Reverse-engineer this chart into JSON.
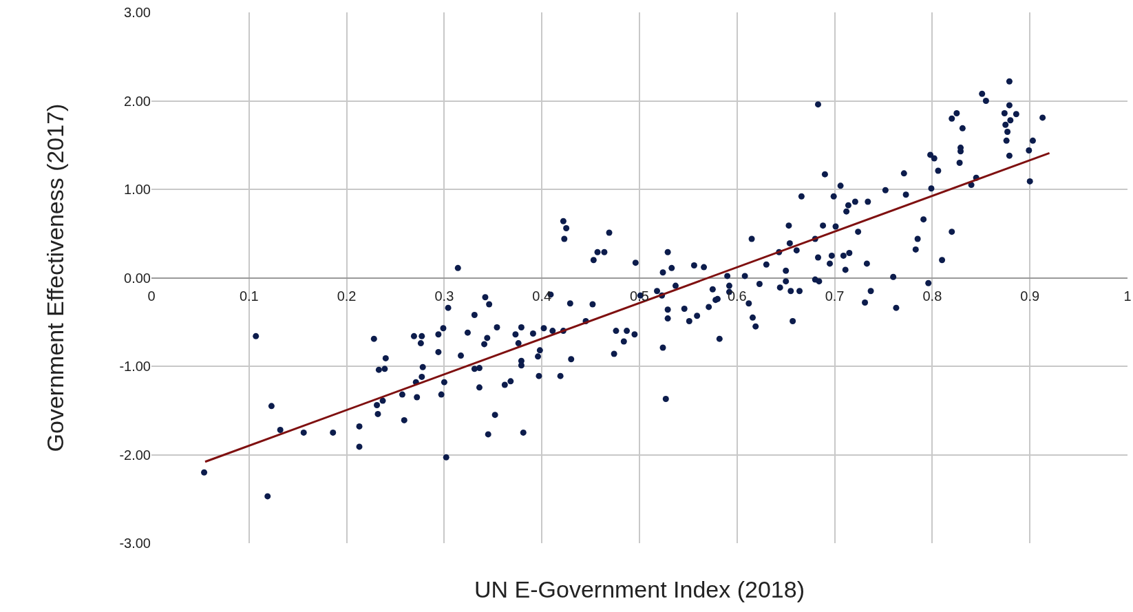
{
  "chart_data": {
    "type": "scatter",
    "xlabel": "UN E-Government Index (2018)",
    "ylabel": "Government Effectiveness (2017)",
    "xlim": [
      0,
      1
    ],
    "xticks": [
      0,
      0.1,
      0.2,
      0.3,
      0.4,
      0.5,
      0.6,
      0.7,
      0.8,
      0.9,
      1
    ],
    "ylim": [
      -3,
      3
    ],
    "yticks": [
      {
        "value": -3,
        "label": "-3.00"
      },
      {
        "value": -2,
        "label": "-2.00"
      },
      {
        "value": -1,
        "label": "-1.00"
      },
      {
        "value": 0,
        "label": "0.00"
      },
      {
        "value": 1,
        "label": "1.00"
      },
      {
        "value": 2,
        "label": "2.00"
      },
      {
        "value": 3,
        "label": "3.00"
      }
    ],
    "grid": true,
    "marker": "circle",
    "series": [
      {
        "color": "#0c1c4c",
        "x": [
          0.054,
          0.107,
          0.119,
          0.123,
          0.132,
          0.156,
          0.186,
          0.213,
          0.213,
          0.228,
          0.231,
          0.232,
          0.233,
          0.239,
          0.237,
          0.24,
          0.257,
          0.259,
          0.269,
          0.271,
          0.272,
          0.276,
          0.277,
          0.278,
          0.277,
          0.294,
          0.294,
          0.297,
          0.299,
          0.3,
          0.302,
          0.304,
          0.314,
          0.317,
          0.324,
          0.331,
          0.331,
          0.336,
          0.336,
          0.342,
          0.344,
          0.341,
          0.346,
          0.345,
          0.352,
          0.354,
          0.362,
          0.368,
          0.373,
          0.376,
          0.379,
          0.379,
          0.379,
          0.381,
          0.391,
          0.396,
          0.397,
          0.398,
          0.402,
          0.409,
          0.411,
          0.419,
          0.422,
          0.425,
          0.423,
          0.422,
          0.429,
          0.43,
          0.445,
          0.452,
          0.453,
          0.457,
          0.464,
          0.469,
          0.474,
          0.476,
          0.484,
          0.487,
          0.495,
          0.496,
          0.501,
          0.518,
          0.523,
          0.524,
          0.529,
          0.529,
          0.529,
          0.524,
          0.527,
          0.533,
          0.537,
          0.546,
          0.551,
          0.556,
          0.559,
          0.566,
          0.571,
          0.575,
          0.578,
          0.58,
          0.582,
          0.59,
          0.592,
          0.592,
          0.608,
          0.612,
          0.615,
          0.616,
          0.619,
          0.623,
          0.63,
          0.643,
          0.644,
          0.65,
          0.65,
          0.653,
          0.654,
          0.655,
          0.657,
          0.661,
          0.664,
          0.666,
          0.68,
          0.68,
          0.683,
          0.683,
          0.684,
          0.688,
          0.69,
          0.695,
          0.697,
          0.699,
          0.701,
          0.706,
          0.709,
          0.711,
          0.712,
          0.714,
          0.715,
          0.721,
          0.724,
          0.731,
          0.733,
          0.734,
          0.737,
          0.752,
          0.76,
          0.763,
          0.771,
          0.773,
          0.783,
          0.785,
          0.791,
          0.796,
          0.798,
          0.802,
          0.799,
          0.806,
          0.81,
          0.82,
          0.82,
          0.825,
          0.828,
          0.829,
          0.829,
          0.831,
          0.84,
          0.845,
          0.851,
          0.855,
          0.874,
          0.875,
          0.876,
          0.877,
          0.879,
          0.879,
          0.879,
          0.88,
          0.886,
          0.899,
          0.9,
          0.903,
          0.913
        ],
        "values": [
          -2.2,
          -0.66,
          -2.47,
          -1.45,
          -1.72,
          -1.75,
          -1.75,
          -1.68,
          -1.91,
          -0.69,
          -1.44,
          -1.54,
          -1.04,
          -1.03,
          -1.39,
          -0.91,
          -1.32,
          -1.61,
          -0.66,
          -1.18,
          -1.35,
          -0.74,
          -0.66,
          -1.01,
          -1.12,
          -0.64,
          -0.84,
          -1.32,
          -0.57,
          -1.18,
          -2.03,
          -0.34,
          0.11,
          -0.88,
          -0.62,
          -0.42,
          -1.03,
          -1.02,
          -1.24,
          -0.22,
          -0.68,
          -0.75,
          -0.3,
          -1.77,
          -1.55,
          -0.56,
          -1.21,
          -1.17,
          -0.64,
          -0.74,
          -0.56,
          -0.94,
          -0.99,
          -1.75,
          -0.63,
          -0.89,
          -1.11,
          -0.82,
          -0.57,
          -0.19,
          -0.6,
          -1.11,
          0.64,
          0.56,
          0.44,
          -0.6,
          -0.29,
          -0.92,
          -0.49,
          -0.3,
          0.2,
          0.29,
          0.29,
          0.51,
          -0.86,
          -0.6,
          -0.72,
          -0.6,
          -0.64,
          0.17,
          -0.2,
          -0.15,
          -0.2,
          0.06,
          0.29,
          -0.36,
          -0.46,
          -0.79,
          -1.37,
          0.11,
          -0.09,
          -0.35,
          -0.49,
          0.14,
          -0.43,
          0.12,
          -0.33,
          -0.13,
          -0.25,
          -0.24,
          -0.69,
          0.02,
          -0.09,
          -0.16,
          0.02,
          -0.29,
          0.44,
          -0.45,
          -0.55,
          -0.07,
          0.15,
          0.29,
          -0.11,
          0.08,
          -0.04,
          0.59,
          0.39,
          -0.15,
          -0.49,
          0.31,
          -0.15,
          0.92,
          0.44,
          -0.02,
          1.96,
          0.23,
          -0.04,
          0.59,
          1.17,
          0.16,
          0.25,
          0.92,
          0.58,
          1.04,
          0.25,
          0.09,
          0.75,
          0.82,
          0.28,
          0.86,
          0.52,
          -0.28,
          0.16,
          0.86,
          -0.15,
          0.99,
          0.01,
          -0.34,
          1.18,
          0.94,
          0.32,
          0.44,
          0.66,
          -0.06,
          1.39,
          1.35,
          1.01,
          1.21,
          0.2,
          0.52,
          1.8,
          1.86,
          1.3,
          1.43,
          1.47,
          1.69,
          1.05,
          1.13,
          2.08,
          2.0,
          1.86,
          1.73,
          1.55,
          1.65,
          1.38,
          2.22,
          1.95,
          1.78,
          1.85,
          1.44,
          1.09,
          1.55,
          1.81
        ]
      },
      {
        "type": "line",
        "color": "#7f1010",
        "line_style": "solid",
        "marker": "none",
        "x": [
          0.055,
          0.92
        ],
        "values": [
          -2.08,
          1.41
        ]
      }
    ]
  }
}
